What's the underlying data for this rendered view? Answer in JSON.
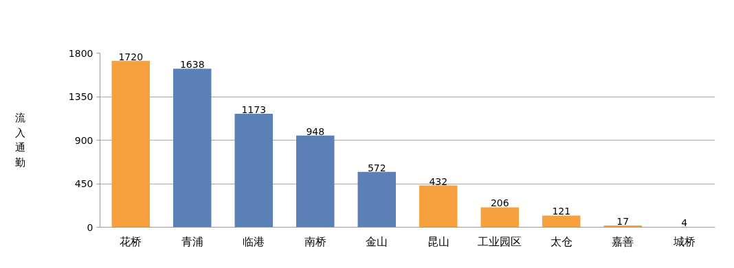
{
  "chart_data": {
    "type": "bar",
    "ylabel": "流入通勤",
    "categories": [
      "花桥",
      "青浦",
      "临港",
      "南桥",
      "金山",
      "昆山",
      "工业园区",
      "太仓",
      "嘉善",
      "城桥"
    ],
    "values": [
      1720,
      1638,
      1173,
      948,
      572,
      432,
      206,
      121,
      17,
      4
    ],
    "colors": [
      "#f7a03e",
      "#5b80b6",
      "#5b80b6",
      "#5b80b6",
      "#5b80b6",
      "#f7a03e",
      "#f7a03e",
      "#f7a03e",
      "#f7a03e",
      "#f7a03e"
    ],
    "ylim": [
      0,
      1800
    ],
    "yticks": [
      0,
      450,
      900,
      1350,
      1800
    ],
    "grid": "y",
    "data_labels": true
  }
}
